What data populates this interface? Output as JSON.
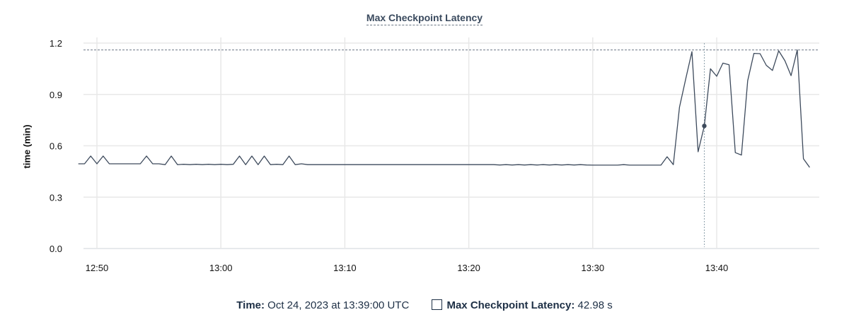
{
  "chart_data": {
    "type": "line",
    "title": "Max Checkpoint Latency",
    "xlabel": "",
    "ylabel": "time (min)",
    "ylim": [
      0,
      1.2
    ],
    "yticks": [
      "0.0",
      "0.3",
      "0.6",
      "0.9",
      "1.2"
    ],
    "xticks": [
      "12:50",
      "13:00",
      "13:10",
      "13:20",
      "13:30",
      "13:40"
    ],
    "grid": true,
    "line_color": "#3d4a5c",
    "max_line_value": 1.16,
    "hover_time": "13:39:00",
    "x": [
      "12:48:30",
      "12:49:00",
      "12:49:30",
      "12:50:00",
      "12:50:30",
      "12:51:00",
      "12:51:30",
      "12:52:00",
      "12:52:30",
      "12:53:00",
      "12:53:30",
      "12:54:00",
      "12:54:30",
      "12:55:00",
      "12:55:30",
      "12:56:00",
      "12:56:30",
      "12:57:00",
      "12:57:30",
      "12:58:00",
      "12:58:30",
      "12:59:00",
      "12:59:30",
      "13:00:00",
      "13:00:30",
      "13:01:00",
      "13:01:30",
      "13:02:00",
      "13:02:30",
      "13:03:00",
      "13:03:30",
      "13:04:00",
      "13:04:30",
      "13:05:00",
      "13:05:30",
      "13:06:00",
      "13:06:30",
      "13:07:00",
      "13:07:30",
      "13:08:00",
      "13:08:30",
      "13:09:00",
      "13:09:30",
      "13:10:00",
      "13:10:30",
      "13:11:00",
      "13:11:30",
      "13:12:00",
      "13:12:30",
      "13:13:00",
      "13:13:30",
      "13:14:00",
      "13:14:30",
      "13:15:00",
      "13:15:30",
      "13:16:00",
      "13:16:30",
      "13:17:00",
      "13:17:30",
      "13:18:00",
      "13:18:30",
      "13:19:00",
      "13:19:30",
      "13:20:00",
      "13:20:30",
      "13:21:00",
      "13:21:30",
      "13:22:00",
      "13:22:30",
      "13:23:00",
      "13:23:30",
      "13:24:00",
      "13:24:30",
      "13:25:00",
      "13:25:30",
      "13:26:00",
      "13:26:30",
      "13:27:00",
      "13:27:30",
      "13:28:00",
      "13:28:30",
      "13:29:00",
      "13:29:30",
      "13:30:00",
      "13:30:30",
      "13:31:00",
      "13:31:30",
      "13:32:00",
      "13:32:30",
      "13:33:00",
      "13:33:30",
      "13:34:00",
      "13:34:30",
      "13:35:00",
      "13:35:30",
      "13:36:00",
      "13:36:30",
      "13:37:00",
      "13:37:30",
      "13:38:00",
      "13:38:30",
      "13:39:00",
      "13:39:30",
      "13:40:00",
      "13:40:30",
      "13:41:00",
      "13:41:30",
      "13:42:00",
      "13:42:30",
      "13:43:00",
      "13:43:30",
      "13:44:00",
      "13:44:30",
      "13:45:00",
      "13:45:30",
      "13:46:00",
      "13:46:30",
      "13:47:00",
      "13:47:30"
    ],
    "series": [
      {
        "values": [
          0.495,
          0.495,
          0.54,
          0.495,
          0.54,
          0.495,
          0.495,
          0.495,
          0.495,
          0.495,
          0.495,
          0.54,
          0.495,
          0.495,
          0.49,
          0.54,
          0.49,
          0.492,
          0.49,
          0.492,
          0.49,
          0.492,
          0.49,
          0.492,
          0.49,
          0.492,
          0.54,
          0.49,
          0.54,
          0.49,
          0.54,
          0.49,
          0.492,
          0.49,
          0.54,
          0.49,
          0.495,
          0.49,
          0.49,
          0.49,
          0.49,
          0.49,
          0.49,
          0.49,
          0.49,
          0.49,
          0.49,
          0.49,
          0.49,
          0.49,
          0.49,
          0.49,
          0.49,
          0.49,
          0.49,
          0.49,
          0.49,
          0.49,
          0.49,
          0.49,
          0.49,
          0.49,
          0.49,
          0.49,
          0.49,
          0.49,
          0.49,
          0.49,
          0.488,
          0.49,
          0.488,
          0.49,
          0.488,
          0.49,
          0.488,
          0.49,
          0.488,
          0.49,
          0.488,
          0.49,
          0.488,
          0.49,
          0.488,
          0.487,
          0.487,
          0.487,
          0.487,
          0.487,
          0.49,
          0.487,
          0.487,
          0.487,
          0.487,
          0.487,
          0.487,
          0.536,
          0.49,
          0.825,
          0.99,
          1.15,
          0.565,
          0.716,
          1.05,
          1.006,
          1.083,
          1.073,
          0.56,
          0.546,
          0.98,
          1.14,
          1.138,
          1.07,
          1.04,
          1.155,
          1.097,
          1.01,
          1.16,
          0.524,
          0.474
        ]
      }
    ]
  },
  "legend": {
    "time_label": "Time:",
    "time_value": "Oct 24, 2023 at 13:39:00 UTC",
    "series_label": "Max Checkpoint Latency:",
    "series_value": "42.98 s"
  }
}
